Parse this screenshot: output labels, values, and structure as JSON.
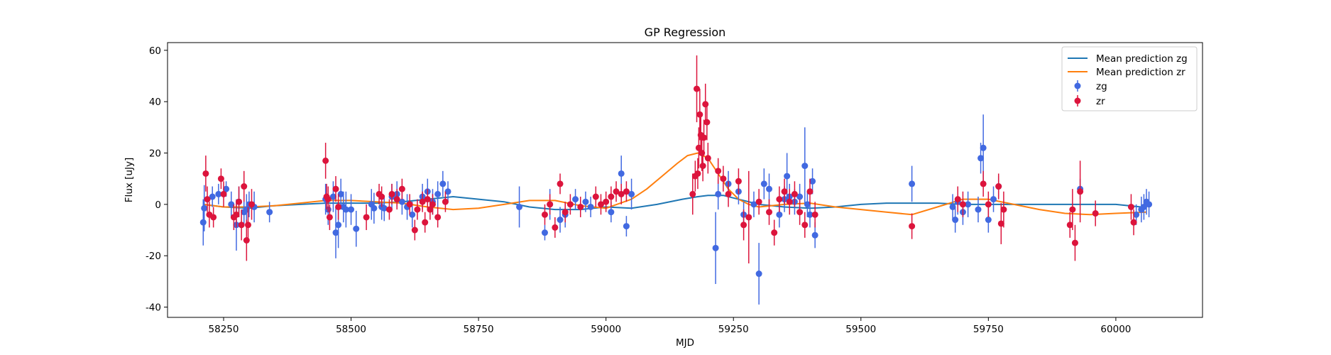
{
  "chart_data": {
    "type": "scatter",
    "title": "GP Regression",
    "xlabel": "MJD",
    "ylabel": "Flux [uJy]",
    "xlim": [
      58140,
      60170
    ],
    "ylim": [
      -44,
      63
    ],
    "xticks": [
      58250,
      58500,
      58750,
      59000,
      59250,
      59500,
      59750,
      60000
    ],
    "yticks": [
      -40,
      -20,
      0,
      20,
      40,
      60
    ],
    "grid": false,
    "legend_position": "top-right",
    "lines": [
      {
        "name": "Mean prediction zg",
        "color": "#1f77b4",
        "x": [
          58210,
          58250,
          58300,
          58350,
          58400,
          58450,
          58500,
          58550,
          58600,
          58650,
          58700,
          58750,
          58800,
          58850,
          58900,
          58950,
          59000,
          59050,
          59100,
          59150,
          59180,
          59200,
          59230,
          59250,
          59280,
          59300,
          59350,
          59400,
          59450,
          59500,
          59550,
          59600,
          59650,
          59700,
          59750,
          59800,
          59850,
          59900,
          59950,
          60000,
          60050,
          60060
        ],
        "y": [
          0,
          -1,
          -1.5,
          -0.5,
          0,
          0.5,
          0.5,
          0.5,
          1,
          2,
          3,
          2,
          1,
          -1,
          -2,
          -2,
          -1,
          -1.5,
          0,
          2,
          3,
          3.5,
          3.5,
          2.5,
          1,
          0,
          -1,
          -1.5,
          -1,
          0,
          0.5,
          0.5,
          0.5,
          0,
          0,
          0,
          0,
          0,
          0,
          0,
          -1,
          -1
        ]
      },
      {
        "name": "Mean prediction zr",
        "color": "#ff7f0e",
        "x": [
          58210,
          58250,
          58300,
          58350,
          58400,
          58450,
          58500,
          58550,
          58600,
          58650,
          58700,
          58750,
          58800,
          58850,
          58900,
          58950,
          59000,
          59050,
          59080,
          59110,
          59140,
          59160,
          59180,
          59200,
          59220,
          59240,
          59260,
          59280,
          59300,
          59350,
          59400,
          59450,
          59500,
          59550,
          59600,
          59650,
          59700,
          59750,
          59800,
          59850,
          59900,
          59950,
          60000,
          60060
        ],
        "y": [
          0,
          -1,
          -1,
          -0.5,
          0.5,
          1.5,
          1.5,
          1,
          0.5,
          -1,
          -2,
          -1.5,
          0,
          1.5,
          1.5,
          -0.5,
          -1.5,
          2,
          6,
          11,
          16,
          19,
          20,
          18,
          12,
          6,
          2,
          0,
          -1,
          0,
          0.5,
          -1,
          -2,
          -3,
          -4,
          -1,
          2,
          2,
          0,
          -2,
          -3.5,
          -4,
          -3.5,
          -3
        ]
      }
    ],
    "series": [
      {
        "name": "zg",
        "color": "#4169e1",
        "x": [
          58210,
          58212,
          58228,
          58240,
          58255,
          58265,
          58275,
          58280,
          58290,
          58295,
          58300,
          58310,
          58340,
          58450,
          58455,
          58465,
          58470,
          58475,
          58480,
          58485,
          58490,
          58500,
          58510,
          58540,
          58545,
          58560,
          58565,
          58580,
          58590,
          58600,
          58610,
          58620,
          58640,
          58650,
          58660,
          58670,
          58680,
          58690,
          58830,
          58880,
          58890,
          58910,
          58920,
          58940,
          58960,
          58970,
          59010,
          59030,
          59040,
          59050,
          59215,
          59220,
          59240,
          59260,
          59270,
          59290,
          59300,
          59310,
          59320,
          59340,
          59350,
          59355,
          59360,
          59370,
          59380,
          59390,
          59395,
          59400,
          59405,
          59410,
          59600,
          59680,
          59685,
          59690,
          59700,
          59710,
          59730,
          59735,
          59740,
          59750,
          59760,
          59770,
          59930,
          60040,
          60050,
          60055,
          60060,
          60065
        ],
        "y": [
          -7,
          -1.5,
          3,
          4,
          6,
          0,
          -8,
          1,
          -3,
          -2,
          0,
          -1,
          -3,
          2,
          -2,
          3,
          -11,
          -8,
          4,
          -1,
          -2,
          -2,
          -9.5,
          0,
          -1.5,
          -1,
          -1.5,
          3,
          4,
          1,
          -1,
          -4,
          3,
          5,
          1,
          4,
          8,
          5,
          -1,
          -11,
          0,
          -6,
          -4,
          2,
          1,
          -1,
          -3,
          12,
          -8.5,
          4,
          -17,
          4,
          8,
          5,
          -4,
          0,
          -27,
          8,
          6,
          -4,
          2,
          11,
          3,
          1,
          3,
          15,
          0,
          -4,
          9,
          -12,
          8,
          -1,
          -6,
          1,
          -3,
          0,
          -2,
          18,
          22,
          -6,
          2,
          7,
          6,
          -4,
          -2,
          -1,
          1,
          0
        ],
        "err": [
          9,
          9,
          4,
          4,
          3,
          5,
          10,
          6,
          5,
          6,
          5,
          6,
          4,
          6,
          6,
          6,
          10,
          9,
          6,
          6,
          7,
          6,
          7,
          6,
          6,
          5,
          5,
          5,
          5,
          5,
          5,
          5,
          5,
          5,
          5,
          5,
          5,
          4,
          8,
          3,
          6,
          5,
          5,
          4,
          4,
          4,
          4,
          7,
          4,
          6,
          14,
          6,
          5,
          5,
          5,
          5,
          12,
          6,
          6,
          5,
          5,
          9,
          5,
          5,
          5,
          15,
          5,
          5,
          5,
          5,
          7,
          5,
          5,
          5,
          5,
          5,
          5,
          6,
          13,
          5,
          5,
          4,
          4,
          4,
          5,
          5,
          5,
          5
        ]
      },
      {
        "name": "zr",
        "color": "#dc143c",
        "x": [
          58215,
          58218,
          58222,
          58230,
          58245,
          58250,
          58270,
          58275,
          58280,
          58285,
          58290,
          58295,
          58298,
          58305,
          58450,
          58452,
          58455,
          58458,
          58470,
          58475,
          58530,
          58555,
          58560,
          58575,
          58580,
          58590,
          58600,
          58615,
          58625,
          58630,
          58640,
          58645,
          58650,
          58655,
          58660,
          58670,
          58685,
          58880,
          58890,
          58900,
          58910,
          58920,
          58930,
          58950,
          58980,
          58990,
          59000,
          59010,
          59020,
          59030,
          59040,
          59170,
          59175,
          59178,
          59180,
          59182,
          59184,
          59186,
          59188,
          59190,
          59192,
          59195,
          59198,
          59200,
          59220,
          59230,
          59240,
          59260,
          59270,
          59280,
          59300,
          59320,
          59330,
          59340,
          59350,
          59360,
          59370,
          59380,
          59390,
          59400,
          59410,
          59600,
          59690,
          59700,
          59740,
          59750,
          59770,
          59775,
          59780,
          59910,
          59915,
          59920,
          59930,
          59960,
          60030,
          60035
        ],
        "y": [
          12,
          2,
          -4,
          -5,
          10,
          4,
          -5,
          -4,
          1,
          -8,
          7,
          -14,
          -8,
          0,
          17,
          3,
          2,
          -5,
          6,
          -1,
          -5,
          4,
          3,
          -2,
          4,
          2,
          6,
          0,
          -10,
          -2,
          1,
          -7,
          2,
          -2,
          0,
          -5,
          1,
          -4,
          0,
          -9,
          8,
          -3,
          0,
          -1,
          3,
          0,
          1,
          3,
          5,
          4,
          5,
          4,
          11,
          45,
          12,
          22,
          35,
          27,
          20,
          15,
          26,
          39,
          32,
          18,
          13,
          10,
          4,
          9,
          -8,
          -5,
          1,
          -3,
          -11,
          2,
          5,
          1,
          4,
          -3,
          -8,
          5,
          -4,
          -8.5,
          2,
          0,
          8,
          0,
          7,
          -7.5,
          -2,
          -8,
          -2,
          -15,
          5,
          -3.5,
          -1,
          -7
        ],
        "err": [
          7,
          5,
          5,
          4,
          4,
          5,
          5,
          5,
          6,
          6,
          6,
          8,
          7,
          6,
          7,
          5,
          5,
          5,
          5,
          5,
          5,
          4,
          4,
          4,
          4,
          4,
          4,
          4,
          4,
          4,
          4,
          4,
          4,
          4,
          4,
          4,
          4,
          4,
          4,
          4,
          4,
          4,
          4,
          4,
          4,
          4,
          4,
          4,
          4,
          4,
          4,
          8,
          6,
          13,
          6,
          8,
          10,
          8,
          7,
          6,
          7,
          8,
          7,
          6,
          5,
          5,
          5,
          5,
          6,
          18,
          5,
          5,
          5,
          5,
          5,
          5,
          5,
          5,
          5,
          5,
          5,
          5,
          5,
          5,
          5,
          5,
          5,
          8,
          7,
          5,
          8,
          7,
          12,
          5,
          5,
          5
        ]
      }
    ]
  }
}
